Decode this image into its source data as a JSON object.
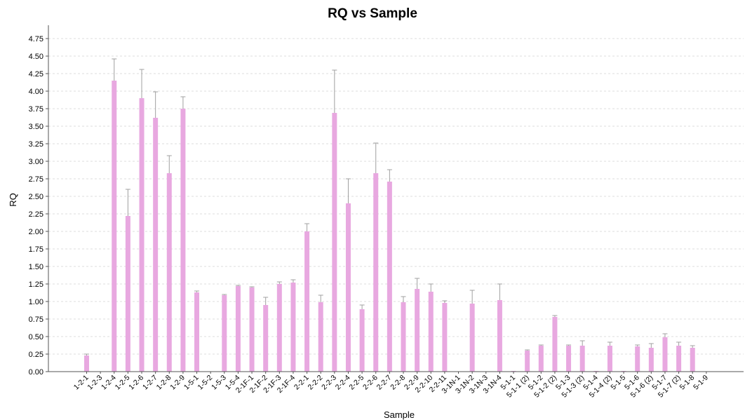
{
  "chart_data": {
    "type": "bar",
    "title": "RQ vs Sample",
    "xlabel": "Sample",
    "ylabel": "RQ",
    "ylim": [
      0,
      4.75
    ],
    "yticks": [
      "0.00",
      "0.25",
      "0.50",
      "0.75",
      "1.00",
      "1.25",
      "1.50",
      "1.75",
      "2.00",
      "2.25",
      "2.50",
      "2.75",
      "3.00",
      "3.25",
      "3.50",
      "3.75",
      "4.00",
      "4.25",
      "4.50",
      "4.75"
    ],
    "grid": true,
    "legend": "none",
    "bar_color": "#e8a8e0",
    "errorbar_color": "#a0a0a0",
    "categories": [
      "1-2-1",
      "1-2-3",
      "1-2-4",
      "1-2-5",
      "1-2-6",
      "1-2-7",
      "1-2-8",
      "1-2-9",
      "1-5-1",
      "1-5-2",
      "1-5-3",
      "1-5-4",
      "2-1F-1",
      "2-1F-2",
      "2-1F-3",
      "2-1F-4",
      "2-2-1",
      "2-2-2",
      "2-2-3",
      "2-2-4",
      "2-2-5",
      "2-2-6",
      "2-2-7",
      "2-2-8",
      "2-2-9",
      "2-2-10",
      "2-2-11",
      "3-1N-1",
      "3-1N-2",
      "3-1N-3",
      "3-1N-4",
      "5-1-1",
      "5-1-1 (2)",
      "5-1-2",
      "5-1-2 (2)",
      "5-1-3",
      "5-1-3 (2)",
      "5-1-4",
      "5-1-4 (2)",
      "5-1-5",
      "5-1-6",
      "5-1-6 (2)",
      "5-1-7",
      "5-1-7 (2)",
      "5-1-8",
      "5-1-9"
    ],
    "values": [
      0.23,
      0,
      4.15,
      2.22,
      3.9,
      3.62,
      2.83,
      3.75,
      1.13,
      0,
      1.09,
      1.22,
      1.2,
      0.95,
      1.25,
      1.27,
      2.0,
      0.99,
      3.69,
      2.4,
      0.89,
      2.83,
      2.71,
      0.99,
      1.18,
      1.14,
      0.98,
      0,
      0.97,
      0,
      1.02,
      0.01,
      0.3,
      0.37,
      0.78,
      0.37,
      0.37,
      0.01,
      0.37,
      0.01,
      0.36,
      0.34,
      0.49,
      0.37,
      0.34,
      0
    ],
    "error_upper": [
      0.25,
      0,
      4.46,
      2.6,
      4.31,
      3.99,
      3.08,
      3.92,
      1.15,
      0,
      1.1,
      1.23,
      1.21,
      1.06,
      1.28,
      1.31,
      2.11,
      1.09,
      4.3,
      2.75,
      0.95,
      3.26,
      2.88,
      1.07,
      1.33,
      1.25,
      1.01,
      0,
      1.16,
      0,
      1.25,
      0.01,
      0.31,
      0.38,
      0.8,
      0.38,
      0.44,
      0.01,
      0.42,
      0.01,
      0.38,
      0.4,
      0.54,
      0.42,
      0.37,
      0
    ]
  }
}
